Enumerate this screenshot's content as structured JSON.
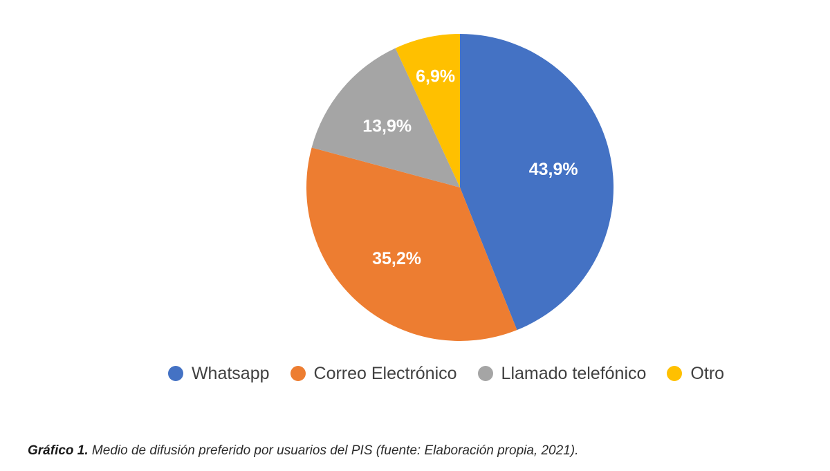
{
  "chart_data": {
    "type": "pie",
    "title": "",
    "categories": [
      "Whatsapp",
      "Correo Electrónico",
      "Llamado telefónico",
      "Otro"
    ],
    "values": [
      43.9,
      35.2,
      13.9,
      6.9
    ],
    "data_labels": [
      "43,9%",
      "35,2%",
      "13,9%",
      "6,9%"
    ],
    "colors": [
      "#4472C4",
      "#ED7D31",
      "#A5A5A5",
      "#FFC000"
    ],
    "start_angle": "12 o'clock",
    "direction": "clockwise",
    "legend_position": "bottom"
  },
  "caption": {
    "label": "Gráfico 1.",
    "text": " Medio de difusión preferido por usuarios del PIS (fuente: Elaboración propia, 2021)."
  }
}
